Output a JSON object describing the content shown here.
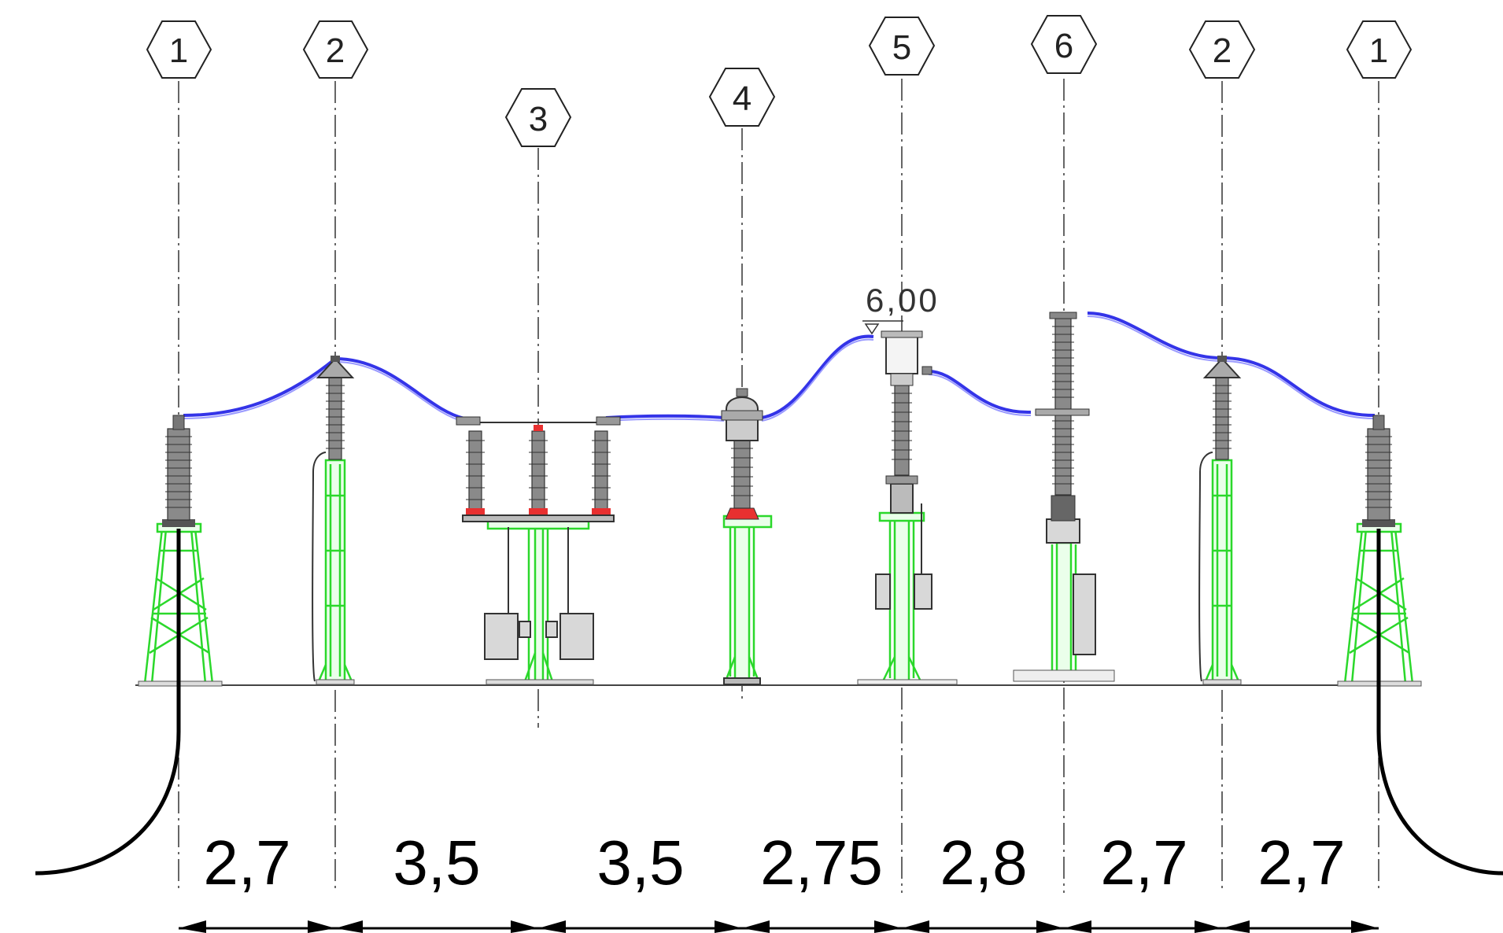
{
  "drawing": {
    "tags": [
      {
        "label": "1",
        "element": "cable-termination"
      },
      {
        "label": "2",
        "element": "post-insulator"
      },
      {
        "label": "3",
        "element": "disconnector"
      },
      {
        "label": "4",
        "element": "voltage-transformer"
      },
      {
        "label": "5",
        "element": "current-transformer"
      },
      {
        "label": "6",
        "element": "surge-arrester"
      },
      {
        "label": "2",
        "element": "post-insulator"
      },
      {
        "label": "1",
        "element": "cable-termination"
      }
    ],
    "elevation_label": "6,00",
    "spacings": [
      "2,7",
      "3,5",
      "3,5",
      "2,75",
      "2,8",
      "2,7",
      "2,7"
    ],
    "colors": {
      "conductor": "#3434e8",
      "steel_structure": "#2bd82b",
      "insulator": "#8a8a8a",
      "flange_red": "#e83030",
      "cable": "#000000"
    }
  }
}
